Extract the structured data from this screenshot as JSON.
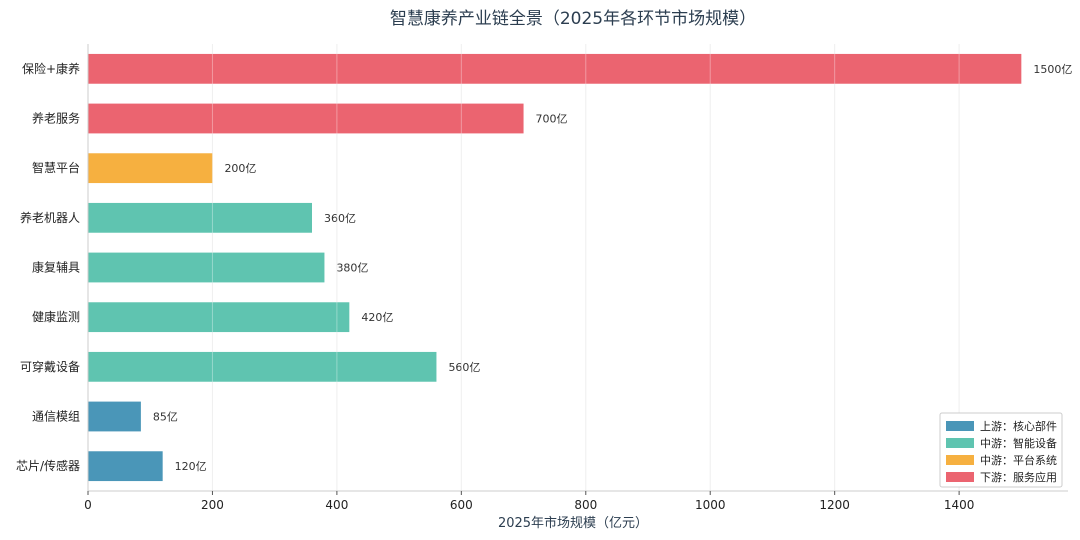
{
  "chart_data": {
    "type": "bar",
    "orientation": "horizontal",
    "title": "智慧康养产业链全景（2025年各环节市场规模）",
    "xlabel": "2025年市场规模（亿元）",
    "ylabel": "",
    "xlim": [
      0,
      1575
    ],
    "xticks": [
      "0",
      "200",
      "400",
      "600",
      "800",
      "1000",
      "1200",
      "1400"
    ],
    "xtick_values": [
      0,
      200,
      400,
      600,
      800,
      1000,
      1200,
      1400
    ],
    "grid": true,
    "legend_position": "bottom-right",
    "categories": [
      "保险+康养",
      "养老服务",
      "智慧平台",
      "养老机器人",
      "康复辅具",
      "健康监测",
      "可穿戴设备",
      "通信模组",
      "芯片/传感器"
    ],
    "values": [
      1500,
      700,
      200,
      360,
      380,
      420,
      560,
      85,
      120
    ],
    "value_labels": [
      "1500亿",
      "700亿",
      "200亿",
      "360亿",
      "380亿",
      "420亿",
      "560亿",
      "85亿",
      "120亿"
    ],
    "groups": [
      3,
      3,
      2,
      1,
      1,
      1,
      1,
      0,
      0
    ],
    "legend": [
      {
        "name": "上游：核心部件",
        "color": "#4a96b8"
      },
      {
        "name": "中游：智能设备",
        "color": "#5fc4b0"
      },
      {
        "name": "中游：平台系统",
        "color": "#f6b040"
      },
      {
        "name": "下游：服务应用",
        "color": "#eb6470"
      }
    ]
  }
}
